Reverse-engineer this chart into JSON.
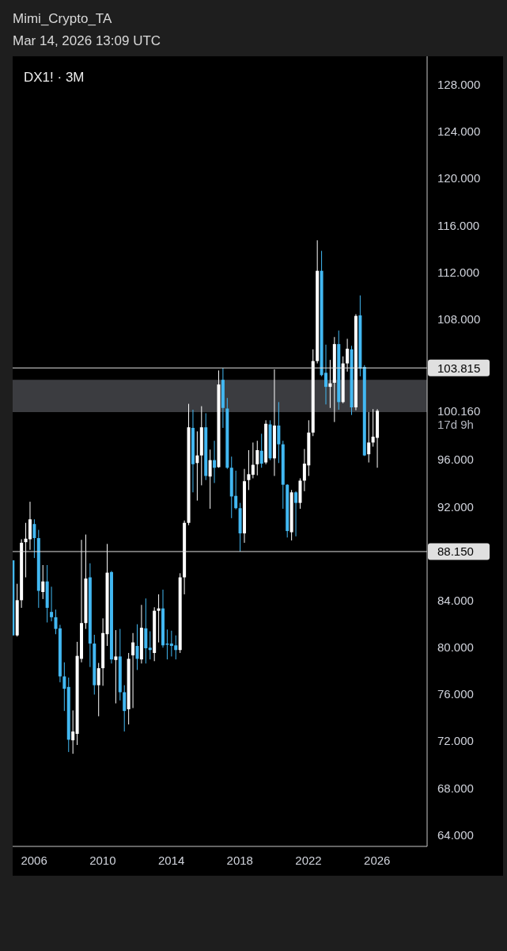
{
  "chart_data": {
    "type": "candlestick",
    "title": "DX1! · 3M",
    "annotations": [
      "Mimi_Crypto_TA",
      "Mar 14, 2026 13:09 UTC",
      "17d 9h"
    ],
    "x": [
      "2004-10",
      "2005-01",
      "2005-04",
      "2005-07",
      "2005-10",
      "2006-01",
      "2006-04",
      "2006-07",
      "2006-10",
      "2007-01",
      "2007-04",
      "2007-07",
      "2007-10",
      "2008-01",
      "2008-04",
      "2008-07",
      "2008-10",
      "2009-01",
      "2009-04",
      "2009-07",
      "2009-10",
      "2010-01",
      "2010-04",
      "2010-07",
      "2010-10",
      "2011-01",
      "2011-04",
      "2011-07",
      "2011-10",
      "2012-01",
      "2012-04",
      "2012-07",
      "2012-10",
      "2013-01",
      "2013-04",
      "2013-07",
      "2013-10",
      "2014-01",
      "2014-04",
      "2014-07",
      "2014-10",
      "2015-01",
      "2015-04",
      "2015-07",
      "2015-10",
      "2016-01",
      "2016-04",
      "2016-07",
      "2016-10",
      "2017-01",
      "2017-04",
      "2017-07",
      "2017-10",
      "2018-01",
      "2018-04",
      "2018-07",
      "2018-10",
      "2019-01",
      "2019-04",
      "2019-07",
      "2019-10",
      "2020-01",
      "2020-04",
      "2020-07",
      "2020-10",
      "2021-01",
      "2021-04",
      "2021-07",
      "2021-10",
      "2022-01",
      "2022-04",
      "2022-07",
      "2022-10",
      "2023-01",
      "2023-04",
      "2023-07",
      "2023-10",
      "2024-01",
      "2024-04",
      "2024-07",
      "2024-10",
      "2025-01",
      "2025-04",
      "2025-07",
      "2025-10",
      "2026-01"
    ],
    "ohlc": [
      [
        87.4,
        87.4,
        81.0,
        81.0
      ],
      [
        81.0,
        85.4,
        80.9,
        84.0
      ],
      [
        84.0,
        89.2,
        83.35,
        88.9
      ],
      [
        88.95,
        90.6,
        85.95,
        89.25
      ],
      [
        89.2,
        92.4,
        88.3,
        90.9
      ],
      [
        90.5,
        90.9,
        87.6,
        89.3
      ],
      [
        89.3,
        90.0,
        83.35,
        84.8
      ],
      [
        84.7,
        87.0,
        84.1,
        85.6
      ],
      [
        85.6,
        87.0,
        82.1,
        83.35
      ],
      [
        83.0,
        85.15,
        82.2,
        82.55
      ],
      [
        82.55,
        83.2,
        81.1,
        81.55
      ],
      [
        81.6,
        81.9,
        77.0,
        77.5
      ],
      [
        77.5,
        78.7,
        74.55,
        76.45
      ],
      [
        76.6,
        77.4,
        71.05,
        72.1
      ],
      [
        72.05,
        74.6,
        70.9,
        72.8
      ],
      [
        72.6,
        80.45,
        71.65,
        79.25
      ],
      [
        79.0,
        89.15,
        78.7,
        82.05
      ],
      [
        82.05,
        89.6,
        81.55,
        85.85
      ],
      [
        85.95,
        87.15,
        78.3,
        80.3
      ],
      [
        80.3,
        81.05,
        75.95,
        76.75
      ],
      [
        76.75,
        78.65,
        74.1,
        78.2
      ],
      [
        78.2,
        82.45,
        76.7,
        81.2
      ],
      [
        81.1,
        88.8,
        80.1,
        86.35
      ],
      [
        86.4,
        86.5,
        78.6,
        78.95
      ],
      [
        78.9,
        81.45,
        75.2,
        79.2
      ],
      [
        79.2,
        81.55,
        75.45,
        76.15
      ],
      [
        76.15,
        76.75,
        72.8,
        74.55
      ],
      [
        74.7,
        79.5,
        73.4,
        79.0
      ],
      [
        79.3,
        81.2,
        74.8,
        80.4
      ],
      [
        80.1,
        81.95,
        78.05,
        79.0
      ],
      [
        78.95,
        83.6,
        78.6,
        81.65
      ],
      [
        81.6,
        84.15,
        78.6,
        79.9
      ],
      [
        79.95,
        81.35,
        78.95,
        79.75
      ],
      [
        79.5,
        83.4,
        78.8,
        83.1
      ],
      [
        83.1,
        84.5,
        80.4,
        83.3
      ],
      [
        83.3,
        84.9,
        79.95,
        80.15
      ],
      [
        80.3,
        81.5,
        78.95,
        80.2
      ],
      [
        80.3,
        81.4,
        79.2,
        80.1
      ],
      [
        80.15,
        81.0,
        78.95,
        79.75
      ],
      [
        79.75,
        86.3,
        79.5,
        85.95
      ],
      [
        85.95,
        90.8,
        84.5,
        90.6
      ],
      [
        90.6,
        100.75,
        90.4,
        98.75
      ],
      [
        98.7,
        100.25,
        93.2,
        95.6
      ],
      [
        95.7,
        98.4,
        92.5,
        96.35
      ],
      [
        96.35,
        100.55,
        93.8,
        98.75
      ],
      [
        98.75,
        99.95,
        94.25,
        94.6
      ],
      [
        94.55,
        96.85,
        91.8,
        95.95
      ],
      [
        95.95,
        97.6,
        94.0,
        95.3
      ],
      [
        95.35,
        103.6,
        95.3,
        102.4
      ],
      [
        102.8,
        103.815,
        98.7,
        100.4
      ],
      [
        100.35,
        101.25,
        95.2,
        95.3
      ],
      [
        95.3,
        96.25,
        91.0,
        92.85
      ],
      [
        92.9,
        95.05,
        91.75,
        91.85
      ],
      [
        91.85,
        92.3,
        88.15,
        89.7
      ],
      [
        89.7,
        95.2,
        88.9,
        94.15
      ],
      [
        94.25,
        96.8,
        93.4,
        94.75
      ],
      [
        94.7,
        97.45,
        94.4,
        95.55
      ],
      [
        95.6,
        97.6,
        94.65,
        96.8
      ],
      [
        96.75,
        98.2,
        95.3,
        95.65
      ],
      [
        95.75,
        99.35,
        95.6,
        99.05
      ],
      [
        99.0,
        99.35,
        95.95,
        96.1
      ],
      [
        96.1,
        103.7,
        94.6,
        98.9
      ],
      [
        98.9,
        100.9,
        95.7,
        97.3
      ],
      [
        97.3,
        97.6,
        91.8,
        93.85
      ],
      [
        93.85,
        93.9,
        89.35,
        89.9
      ],
      [
        89.8,
        93.4,
        89.1,
        93.2
      ],
      [
        93.2,
        93.3,
        89.45,
        92.3
      ],
      [
        92.3,
        94.4,
        91.8,
        94.2
      ],
      [
        94.2,
        96.9,
        93.3,
        95.65
      ],
      [
        95.5,
        99.35,
        94.6,
        98.3
      ],
      [
        98.3,
        105.4,
        98.0,
        104.4
      ],
      [
        104.4,
        114.7,
        104.2,
        112.1
      ],
      [
        112.1,
        113.8,
        103.1,
        103.2
      ],
      [
        103.4,
        105.8,
        100.7,
        102.2
      ],
      [
        102.2,
        104.5,
        100.4,
        102.5
      ],
      [
        102.55,
        106.45,
        99.2,
        105.85
      ],
      [
        105.85,
        107.0,
        100.25,
        100.9
      ],
      [
        100.9,
        104.8,
        100.8,
        104.2
      ],
      [
        104.2,
        106.3,
        103.5,
        105.45
      ],
      [
        105.4,
        105.7,
        99.8,
        100.45
      ],
      [
        100.45,
        108.4,
        100.2,
        108.25
      ],
      [
        108.3,
        110.0,
        103.1,
        103.75
      ],
      [
        103.9,
        104.05,
        96.3,
        96.35
      ],
      [
        96.45,
        100.05,
        95.75,
        97.45
      ],
      [
        97.45,
        100.3,
        97.1,
        97.95
      ],
      [
        97.85,
        100.3,
        95.3,
        100.16
      ]
    ],
    "colors": [
      "#42b8f2",
      "#ffffff",
      "#ffffff",
      "#ffffff",
      "#ffffff",
      "#42b8f2",
      "#42b8f2",
      "#ffffff",
      "#42b8f2",
      "#42b8f2",
      "#42b8f2",
      "#42b8f2",
      "#42b8f2",
      "#42b8f2",
      "#ffffff",
      "#ffffff",
      "#ffffff",
      "#ffffff",
      "#42b8f2",
      "#42b8f2",
      "#ffffff",
      "#ffffff",
      "#ffffff",
      "#42b8f2",
      "#ffffff",
      "#42b8f2",
      "#42b8f2",
      "#ffffff",
      "#ffffff",
      "#42b8f2",
      "#ffffff",
      "#42b8f2",
      "#42b8f2",
      "#ffffff",
      "#ffffff",
      "#42b8f2",
      "#42b8f2",
      "#42b8f2",
      "#42b8f2",
      "#ffffff",
      "#ffffff",
      "#ffffff",
      "#42b8f2",
      "#ffffff",
      "#ffffff",
      "#42b8f2",
      "#ffffff",
      "#42b8f2",
      "#ffffff",
      "#42b8f2",
      "#42b8f2",
      "#42b8f2",
      "#42b8f2",
      "#42b8f2",
      "#ffffff",
      "#ffffff",
      "#ffffff",
      "#ffffff",
      "#42b8f2",
      "#ffffff",
      "#42b8f2",
      "#ffffff",
      "#42b8f2",
      "#42b8f2",
      "#42b8f2",
      "#ffffff",
      "#42b8f2",
      "#ffffff",
      "#ffffff",
      "#ffffff",
      "#ffffff",
      "#ffffff",
      "#42b8f2",
      "#42b8f2",
      "#ffffff",
      "#ffffff",
      "#42b8f2",
      "#ffffff",
      "#ffffff",
      "#42b8f2",
      "#ffffff",
      "#42b8f2",
      "#42b8f2",
      "#ffffff",
      "#ffffff",
      "#ffffff"
    ],
    "xlim": [
      "2004-10",
      "2028-12"
    ],
    "xticks": [
      "2006",
      "2010",
      "2014",
      "2018",
      "2022",
      "2026"
    ],
    "ylim": [
      63,
      130.4
    ],
    "yticks": [
      {
        "value": 64,
        "label": "64.000"
      },
      {
        "value": 68,
        "label": "68.000"
      },
      {
        "value": 72,
        "label": "72.000"
      },
      {
        "value": 76,
        "label": "76.000"
      },
      {
        "value": 80,
        "label": "80.000"
      },
      {
        "value": 84,
        "label": "84.000"
      },
      {
        "value": 92,
        "label": "92.000"
      },
      {
        "value": 96,
        "label": "96.000"
      },
      {
        "value": 100.16,
        "label": "100.160"
      },
      {
        "value": 108,
        "label": "108.000"
      },
      {
        "value": 112,
        "label": "112.000"
      },
      {
        "value": 116,
        "label": "116.000"
      },
      {
        "value": 120,
        "label": "120.000"
      },
      {
        "value": 124,
        "label": "124.000"
      },
      {
        "value": 128,
        "label": "128.000"
      }
    ],
    "ref_lines": [
      {
        "axis": "y",
        "value": 103.815,
        "label": "103.815",
        "color": "#e0e0e0"
      },
      {
        "axis": "y",
        "value": 88.15,
        "label": "88.150",
        "color": "#e0e0e0"
      }
    ],
    "bands": [
      {
        "axis": "y",
        "from": 100.05,
        "to": 102.8,
        "color": "#3b3c40"
      }
    ]
  }
}
